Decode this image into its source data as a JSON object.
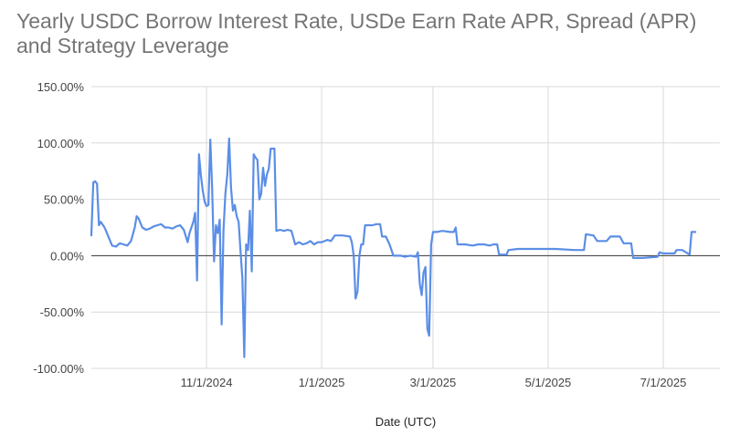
{
  "chart_data": {
    "type": "line",
    "title": "Yearly USDC Borrow Interest Rate, USDe Earn Rate APR, Spread (APR) and Strategy Leverage",
    "xlabel": "Date (UTC)",
    "ylabel": "",
    "ylim": [
      -100,
      150
    ],
    "xlim": [
      "2024-09-01",
      "2025-07-31"
    ],
    "y_ticks": [
      "150.00%",
      "100.00%",
      "50.00%",
      "0.00%",
      "-50.00%",
      "-100.00%"
    ],
    "x_ticks": [
      {
        "date": "2024-11-01",
        "label": "11/1/2024"
      },
      {
        "date": "2025-01-01",
        "label": "1/1/2025"
      },
      {
        "date": "2025-03-01",
        "label": "3/1/2025"
      },
      {
        "date": "2025-05-01",
        "label": "5/1/2025"
      },
      {
        "date": "2025-07-01",
        "label": "7/1/2025"
      }
    ],
    "grid": true,
    "legend": "none",
    "series": [
      {
        "color": "#5b8ee6",
        "points": [
          [
            "2024-09-01",
            18
          ],
          [
            "2024-09-02",
            65
          ],
          [
            "2024-09-03",
            66
          ],
          [
            "2024-09-04",
            64
          ],
          [
            "2024-09-05",
            27
          ],
          [
            "2024-09-06",
            30
          ],
          [
            "2024-09-08",
            25
          ],
          [
            "2024-09-10",
            17
          ],
          [
            "2024-09-12",
            9
          ],
          [
            "2024-09-14",
            8
          ],
          [
            "2024-09-16",
            11
          ],
          [
            "2024-09-18",
            10
          ],
          [
            "2024-09-20",
            9
          ],
          [
            "2024-09-22",
            13
          ],
          [
            "2024-09-24",
            25
          ],
          [
            "2024-09-25",
            35
          ],
          [
            "2024-09-26",
            33
          ],
          [
            "2024-09-28",
            25
          ],
          [
            "2024-09-30",
            23
          ],
          [
            "2024-10-02",
            24
          ],
          [
            "2024-10-04",
            26
          ],
          [
            "2024-10-06",
            27
          ],
          [
            "2024-10-08",
            28
          ],
          [
            "2024-10-10",
            25
          ],
          [
            "2024-10-12",
            25
          ],
          [
            "2024-10-14",
            24
          ],
          [
            "2024-10-16",
            26
          ],
          [
            "2024-10-18",
            27
          ],
          [
            "2024-10-20",
            23
          ],
          [
            "2024-10-22",
            12
          ],
          [
            "2024-10-23",
            20
          ],
          [
            "2024-10-24",
            25
          ],
          [
            "2024-10-25",
            30
          ],
          [
            "2024-10-26",
            38
          ],
          [
            "2024-10-27",
            -22
          ],
          [
            "2024-10-28",
            90
          ],
          [
            "2024-10-29",
            72
          ],
          [
            "2024-10-30",
            58
          ],
          [
            "2024-10-31",
            48
          ],
          [
            "2024-11-01",
            44
          ],
          [
            "2024-11-02",
            45
          ],
          [
            "2024-11-03",
            103
          ],
          [
            "2024-11-04",
            60
          ],
          [
            "2024-11-05",
            -5
          ],
          [
            "2024-11-06",
            27
          ],
          [
            "2024-11-07",
            20
          ],
          [
            "2024-11-08",
            32
          ],
          [
            "2024-11-09",
            -61
          ],
          [
            "2024-11-10",
            22
          ],
          [
            "2024-11-11",
            55
          ],
          [
            "2024-11-12",
            72
          ],
          [
            "2024-11-13",
            104
          ],
          [
            "2024-11-14",
            60
          ],
          [
            "2024-11-15",
            40
          ],
          [
            "2024-11-16",
            45
          ],
          [
            "2024-11-17",
            35
          ],
          [
            "2024-11-18",
            30
          ],
          [
            "2024-11-19",
            5
          ],
          [
            "2024-11-20",
            -20
          ],
          [
            "2024-11-21",
            -90
          ],
          [
            "2024-11-22",
            10
          ],
          [
            "2024-11-23",
            5
          ],
          [
            "2024-11-24",
            40
          ],
          [
            "2024-11-25",
            -14
          ],
          [
            "2024-11-26",
            90
          ],
          [
            "2024-11-27",
            87
          ],
          [
            "2024-11-28",
            85
          ],
          [
            "2024-11-29",
            50
          ],
          [
            "2024-11-30",
            55
          ],
          [
            "2024-12-01",
            78
          ],
          [
            "2024-12-02",
            62
          ],
          [
            "2024-12-03",
            72
          ],
          [
            "2024-12-04",
            77
          ],
          [
            "2024-12-05",
            95
          ],
          [
            "2024-12-06",
            95
          ],
          [
            "2024-12-07",
            95
          ],
          [
            "2024-12-08",
            22
          ],
          [
            "2024-12-10",
            23
          ],
          [
            "2024-12-12",
            22
          ],
          [
            "2024-12-14",
            23
          ],
          [
            "2024-12-16",
            22
          ],
          [
            "2024-12-18",
            10
          ],
          [
            "2024-12-20",
            12
          ],
          [
            "2024-12-22",
            10
          ],
          [
            "2024-12-24",
            11
          ],
          [
            "2024-12-26",
            13
          ],
          [
            "2024-12-28",
            10
          ],
          [
            "2024-12-30",
            12
          ],
          [
            "2025-01-01",
            12
          ],
          [
            "2025-01-04",
            14
          ],
          [
            "2025-01-06",
            13
          ],
          [
            "2025-01-08",
            18
          ],
          [
            "2025-01-12",
            18
          ],
          [
            "2025-01-16",
            17
          ],
          [
            "2025-01-17",
            12
          ],
          [
            "2025-01-18",
            0
          ],
          [
            "2025-01-19",
            -38
          ],
          [
            "2025-01-20",
            -32
          ],
          [
            "2025-01-21",
            0
          ],
          [
            "2025-01-22",
            10
          ],
          [
            "2025-01-23",
            10
          ],
          [
            "2025-01-24",
            27
          ],
          [
            "2025-01-28",
            27
          ],
          [
            "2025-01-30",
            28
          ],
          [
            "2025-02-01",
            28
          ],
          [
            "2025-02-02",
            17
          ],
          [
            "2025-02-04",
            17
          ],
          [
            "2025-02-06",
            10
          ],
          [
            "2025-02-08",
            0
          ],
          [
            "2025-02-12",
            0
          ],
          [
            "2025-02-14",
            -1
          ],
          [
            "2025-02-17",
            0
          ],
          [
            "2025-02-20",
            -1
          ],
          [
            "2025-02-21",
            3
          ],
          [
            "2025-02-22",
            -25
          ],
          [
            "2025-02-23",
            -35
          ],
          [
            "2025-02-24",
            -15
          ],
          [
            "2025-02-25",
            -10
          ],
          [
            "2025-02-26",
            -65
          ],
          [
            "2025-02-27",
            -71
          ],
          [
            "2025-02-28",
            10
          ],
          [
            "2025-03-01",
            21
          ],
          [
            "2025-03-03",
            21
          ],
          [
            "2025-03-06",
            22
          ],
          [
            "2025-03-10",
            21
          ],
          [
            "2025-03-12",
            21
          ],
          [
            "2025-03-13",
            25
          ],
          [
            "2025-03-14",
            10
          ],
          [
            "2025-03-18",
            10
          ],
          [
            "2025-03-22",
            9
          ],
          [
            "2025-03-25",
            10
          ],
          [
            "2025-03-28",
            10
          ],
          [
            "2025-03-31",
            9
          ],
          [
            "2025-04-02",
            10
          ],
          [
            "2025-04-04",
            10
          ],
          [
            "2025-04-05",
            1
          ],
          [
            "2025-04-09",
            1
          ],
          [
            "2025-04-10",
            5
          ],
          [
            "2025-04-15",
            6
          ],
          [
            "2025-04-25",
            6
          ],
          [
            "2025-05-05",
            6
          ],
          [
            "2025-05-15",
            5
          ],
          [
            "2025-05-20",
            5
          ],
          [
            "2025-05-21",
            19
          ],
          [
            "2025-05-25",
            18
          ],
          [
            "2025-05-27",
            13
          ],
          [
            "2025-06-01",
            13
          ],
          [
            "2025-06-03",
            17
          ],
          [
            "2025-06-08",
            17
          ],
          [
            "2025-06-10",
            11
          ],
          [
            "2025-06-14",
            11
          ],
          [
            "2025-06-15",
            -2
          ],
          [
            "2025-06-20",
            -2
          ],
          [
            "2025-06-28",
            -1
          ],
          [
            "2025-06-29",
            3
          ],
          [
            "2025-07-01",
            2
          ],
          [
            "2025-07-03",
            2
          ],
          [
            "2025-07-07",
            2
          ],
          [
            "2025-07-08",
            5
          ],
          [
            "2025-07-11",
            5
          ],
          [
            "2025-07-15",
            1
          ],
          [
            "2025-07-16",
            21
          ],
          [
            "2025-07-18",
            21
          ]
        ]
      }
    ]
  }
}
